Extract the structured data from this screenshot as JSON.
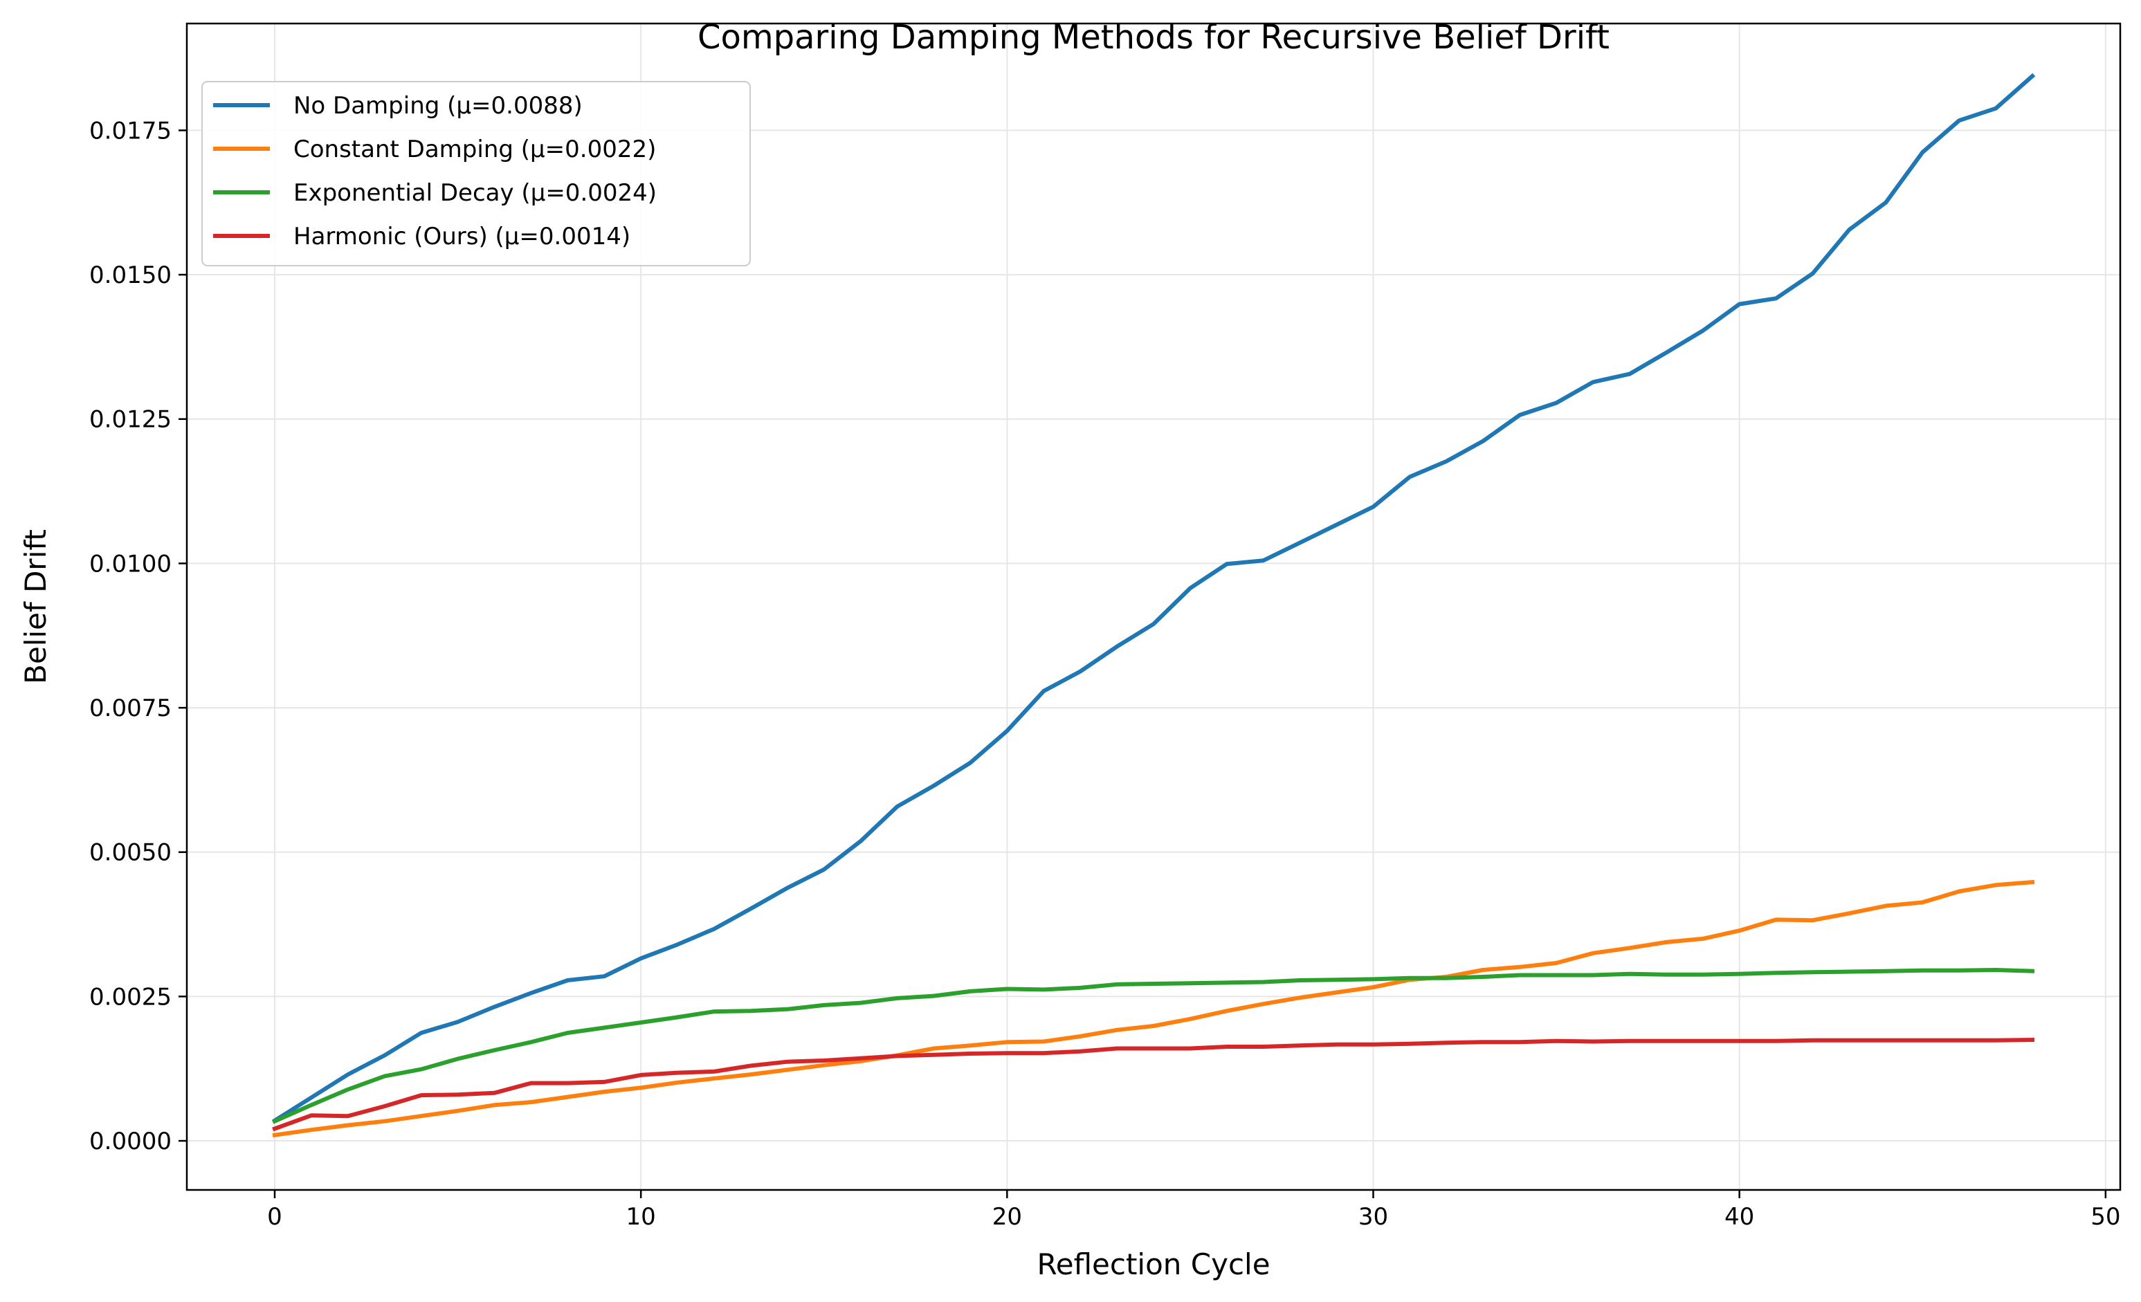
{
  "chart_data": {
    "type": "line",
    "title": "Comparing Damping Methods for Recursive Belief Drift",
    "xlabel": "Reflection Cycle",
    "ylabel": "Belief Drift",
    "xlim": [
      -2.4,
      50.4
    ],
    "ylim": [
      -0.00085,
      0.01935
    ],
    "xticks": [
      0,
      10,
      20,
      30,
      40,
      50
    ],
    "xtick_labels": [
      "0",
      "10",
      "20",
      "30",
      "40",
      "50"
    ],
    "yticks": [
      0.0,
      0.0025,
      0.005,
      0.0075,
      0.01,
      0.0125,
      0.015,
      0.0175
    ],
    "ytick_labels": [
      "0.0000",
      "0.0025",
      "0.0050",
      "0.0075",
      "0.0100",
      "0.0125",
      "0.0150",
      "0.0175"
    ],
    "grid": true,
    "legend_position": "top-left",
    "x": [
      0,
      1,
      2,
      3,
      4,
      5,
      6,
      7,
      8,
      9,
      10,
      11,
      12,
      13,
      14,
      15,
      16,
      17,
      18,
      19,
      20,
      21,
      22,
      23,
      24,
      25,
      26,
      27,
      28,
      29,
      30,
      31,
      32,
      33,
      34,
      35,
      36,
      37,
      38,
      39,
      40,
      41,
      42,
      43,
      44,
      45,
      46,
      47,
      48
    ],
    "series": [
      {
        "name": "No Damping (μ=0.0088)",
        "color": "#1f77b4",
        "values": [
          0.00035,
          0.00075,
          0.00115,
          0.00148,
          0.00187,
          0.00206,
          0.00232,
          0.00256,
          0.00278,
          0.00285,
          0.00316,
          0.0034,
          0.00367,
          0.00402,
          0.00438,
          0.0047,
          0.00519,
          0.00579,
          0.00615,
          0.00655,
          0.0071,
          0.00779,
          0.00813,
          0.00856,
          0.00895,
          0.00957,
          0.00999,
          0.01005,
          0.01036,
          0.01067,
          0.01098,
          0.0115,
          0.01177,
          0.01212,
          0.01257,
          0.01278,
          0.01314,
          0.01328,
          0.01365,
          0.01403,
          0.01449,
          0.01459,
          0.01502,
          0.01578,
          0.01625,
          0.01712,
          0.01767,
          0.01788,
          0.01844
        ]
      },
      {
        "name": "Constant Damping (μ=0.0022)",
        "color": "#ff7f0e",
        "values": [
          0.0001,
          0.00019,
          0.00027,
          0.00034,
          0.00043,
          0.00052,
          0.00062,
          0.00067,
          0.00076,
          0.00085,
          0.00092,
          0.00101,
          0.00108,
          0.00115,
          0.00123,
          0.00131,
          0.00138,
          0.00148,
          0.0016,
          0.00165,
          0.00171,
          0.00172,
          0.00181,
          0.00192,
          0.00199,
          0.00211,
          0.00225,
          0.00237,
          0.00248,
          0.00257,
          0.00266,
          0.00279,
          0.00284,
          0.00296,
          0.00301,
          0.00308,
          0.00325,
          0.00334,
          0.00344,
          0.0035,
          0.00364,
          0.00383,
          0.00382,
          0.00394,
          0.00407,
          0.00413,
          0.00432,
          0.00443,
          0.00448
        ]
      },
      {
        "name": "Exponential Decay (μ=0.0024)",
        "color": "#2ca02c",
        "values": [
          0.00034,
          0.00062,
          0.00089,
          0.00112,
          0.00124,
          0.00142,
          0.00157,
          0.00171,
          0.00187,
          0.00196,
          0.00205,
          0.00214,
          0.00224,
          0.00225,
          0.00228,
          0.00235,
          0.00239,
          0.00247,
          0.00251,
          0.00259,
          0.00263,
          0.00262,
          0.00265,
          0.00271,
          0.00272,
          0.00273,
          0.00274,
          0.00275,
          0.00278,
          0.00279,
          0.0028,
          0.00282,
          0.00282,
          0.00284,
          0.00287,
          0.00287,
          0.00287,
          0.00289,
          0.00288,
          0.00288,
          0.00289,
          0.00291,
          0.00292,
          0.00293,
          0.00294,
          0.00295,
          0.00295,
          0.00296,
          0.00294
        ]
      },
      {
        "name": "Harmonic (Ours) (μ=0.0014)",
        "color": "#d62728",
        "values": [
          0.00021,
          0.00044,
          0.00043,
          0.0006,
          0.00079,
          0.0008,
          0.00083,
          0.001,
          0.001,
          0.00102,
          0.00114,
          0.00118,
          0.0012,
          0.0013,
          0.00137,
          0.00139,
          0.00143,
          0.00147,
          0.00149,
          0.00151,
          0.00152,
          0.00152,
          0.00155,
          0.0016,
          0.0016,
          0.0016,
          0.00163,
          0.00163,
          0.00165,
          0.00167,
          0.00167,
          0.00168,
          0.0017,
          0.00171,
          0.00171,
          0.00173,
          0.00172,
          0.00173,
          0.00173,
          0.00173,
          0.00173,
          0.00173,
          0.00174,
          0.00174,
          0.00174,
          0.00174,
          0.00174,
          0.00174,
          0.00175
        ]
      }
    ]
  }
}
